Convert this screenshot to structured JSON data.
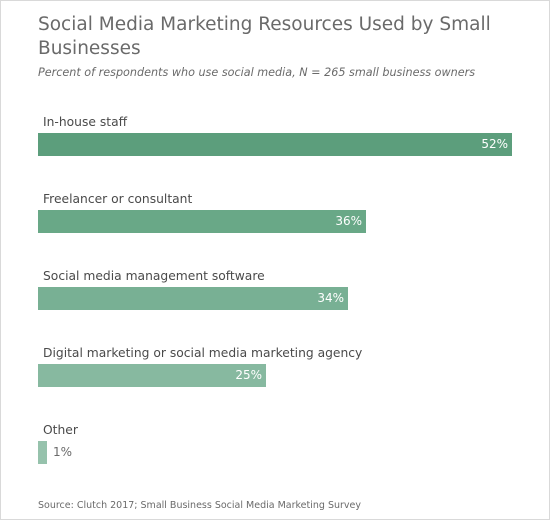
{
  "chart_data": {
    "type": "bar",
    "orientation": "horizontal",
    "title": "Social Media Marketing Resources Used by Small Businesses",
    "subtitle": "Percent of respondents who use social media, N = 265 small business owners",
    "source": "Source: Clutch 2017; Small Business Social Media Marketing Survey",
    "categories": [
      "In-house staff",
      "Freelancer or consultant",
      "Social media management software",
      "Digital marketing or social media marketing agency",
      "Other"
    ],
    "values": [
      52,
      36,
      34,
      25,
      1
    ],
    "value_labels": [
      "52%",
      "36%",
      "34%",
      "25%",
      "1%"
    ],
    "xlim": [
      0,
      52
    ],
    "unit": "%",
    "grid": false,
    "legend": "none",
    "colors": [
      "#5c9e7c",
      "#69a887",
      "#78b094",
      "#87b9a0",
      "#96c2ac"
    ]
  }
}
